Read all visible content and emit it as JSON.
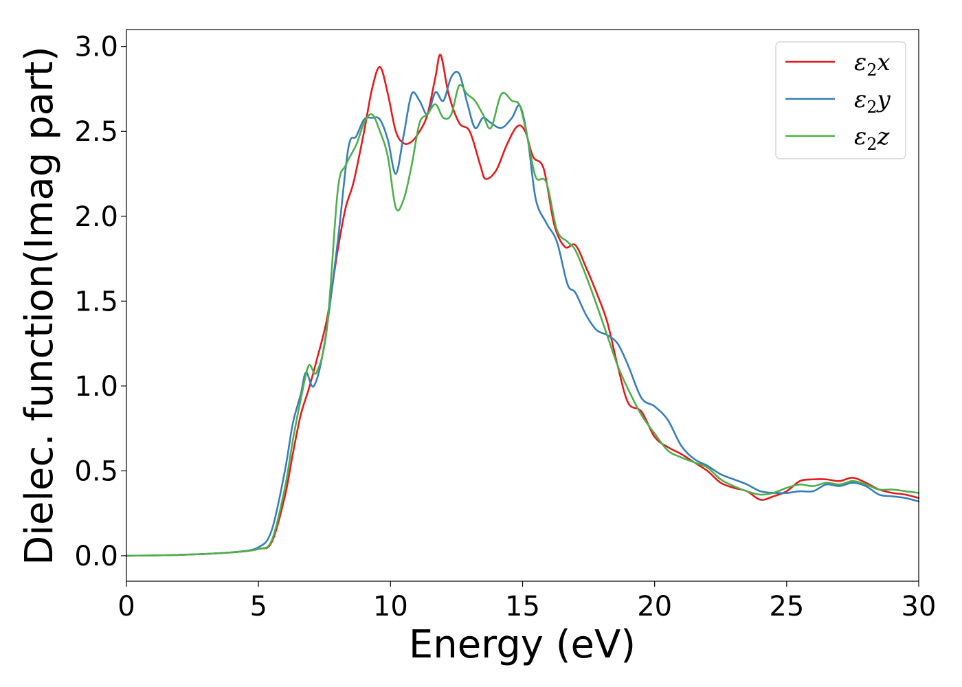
{
  "chart_data": {
    "type": "line",
    "xlabel": "Energy (eV)",
    "ylabel": "Dielec. function(Imag part)",
    "xlim": [
      0,
      30
    ],
    "ylim": [
      -0.15,
      3.1
    ],
    "xticks": [
      0,
      5,
      10,
      15,
      20,
      25,
      30
    ],
    "yticks": [
      0.0,
      0.5,
      1.0,
      1.5,
      2.0,
      2.5,
      3.0
    ],
    "xtick_labels": [
      "0",
      "5",
      "10",
      "15",
      "20",
      "25",
      "30"
    ],
    "ytick_labels": [
      "0.0",
      "0.5",
      "1.0",
      "1.5",
      "2.0",
      "2.5",
      "3.0"
    ],
    "grid": false,
    "legend_position": "top-right",
    "series": [
      {
        "name_main": "ε",
        "name_sub": "2",
        "name_tail": "x",
        "color": "#e41a1c",
        "points": [
          [
            0,
            0.0
          ],
          [
            2,
            0.005
          ],
          [
            4,
            0.02
          ],
          [
            5,
            0.04
          ],
          [
            5.5,
            0.08
          ],
          [
            6,
            0.35
          ],
          [
            6.3,
            0.6
          ],
          [
            6.6,
            0.83
          ],
          [
            6.9,
            0.98
          ],
          [
            7.2,
            1.15
          ],
          [
            7.6,
            1.4
          ],
          [
            8,
            1.8
          ],
          [
            8.3,
            2.05
          ],
          [
            8.6,
            2.2
          ],
          [
            9,
            2.5
          ],
          [
            9.3,
            2.75
          ],
          [
            9.6,
            2.88
          ],
          [
            9.9,
            2.72
          ],
          [
            10.2,
            2.5
          ],
          [
            10.5,
            2.43
          ],
          [
            10.8,
            2.44
          ],
          [
            11.1,
            2.5
          ],
          [
            11.4,
            2.6
          ],
          [
            11.7,
            2.82
          ],
          [
            11.9,
            2.95
          ],
          [
            12.2,
            2.72
          ],
          [
            12.6,
            2.55
          ],
          [
            13,
            2.5
          ],
          [
            13.4,
            2.3
          ],
          [
            13.6,
            2.22
          ],
          [
            14,
            2.27
          ],
          [
            14.4,
            2.42
          ],
          [
            14.8,
            2.53
          ],
          [
            15.1,
            2.5
          ],
          [
            15.4,
            2.35
          ],
          [
            15.8,
            2.28
          ],
          [
            16.2,
            1.95
          ],
          [
            16.6,
            1.82
          ],
          [
            17,
            1.83
          ],
          [
            17.4,
            1.7
          ],
          [
            17.8,
            1.55
          ],
          [
            18.2,
            1.38
          ],
          [
            18.6,
            1.12
          ],
          [
            19,
            0.9
          ],
          [
            19.5,
            0.85
          ],
          [
            20,
            0.7
          ],
          [
            20.5,
            0.64
          ],
          [
            21,
            0.6
          ],
          [
            21.5,
            0.55
          ],
          [
            22,
            0.5
          ],
          [
            22.5,
            0.43
          ],
          [
            23,
            0.4
          ],
          [
            23.5,
            0.38
          ],
          [
            24,
            0.33
          ],
          [
            24.5,
            0.35
          ],
          [
            25,
            0.38
          ],
          [
            25.5,
            0.44
          ],
          [
            26,
            0.45
          ],
          [
            26.5,
            0.45
          ],
          [
            27,
            0.44
          ],
          [
            27.5,
            0.46
          ],
          [
            28,
            0.43
          ],
          [
            28.5,
            0.39
          ],
          [
            29,
            0.37
          ],
          [
            29.5,
            0.36
          ],
          [
            30,
            0.34
          ]
        ]
      },
      {
        "name_main": "ε",
        "name_sub": "2",
        "name_tail": "y",
        "color": "#377eb8",
        "points": [
          [
            0,
            0.0
          ],
          [
            2,
            0.005
          ],
          [
            4,
            0.02
          ],
          [
            5,
            0.05
          ],
          [
            5.5,
            0.15
          ],
          [
            6,
            0.5
          ],
          [
            6.3,
            0.78
          ],
          [
            6.6,
            0.95
          ],
          [
            6.8,
            1.08
          ],
          [
            7.1,
            1.0
          ],
          [
            7.5,
            1.25
          ],
          [
            8,
            1.85
          ],
          [
            8.4,
            2.4
          ],
          [
            8.7,
            2.47
          ],
          [
            9,
            2.57
          ],
          [
            9.3,
            2.58
          ],
          [
            9.6,
            2.57
          ],
          [
            9.9,
            2.45
          ],
          [
            10.2,
            2.25
          ],
          [
            10.5,
            2.48
          ],
          [
            10.8,
            2.72
          ],
          [
            11.1,
            2.68
          ],
          [
            11.4,
            2.6
          ],
          [
            11.7,
            2.73
          ],
          [
            12,
            2.68
          ],
          [
            12.3,
            2.82
          ],
          [
            12.6,
            2.84
          ],
          [
            12.9,
            2.67
          ],
          [
            13.2,
            2.52
          ],
          [
            13.5,
            2.58
          ],
          [
            13.8,
            2.55
          ],
          [
            14.2,
            2.52
          ],
          [
            14.6,
            2.58
          ],
          [
            14.9,
            2.65
          ],
          [
            15.2,
            2.45
          ],
          [
            15.5,
            2.1
          ],
          [
            15.9,
            1.96
          ],
          [
            16.3,
            1.85
          ],
          [
            16.7,
            1.6
          ],
          [
            17,
            1.55
          ],
          [
            17.4,
            1.42
          ],
          [
            17.8,
            1.33
          ],
          [
            18.2,
            1.3
          ],
          [
            18.6,
            1.25
          ],
          [
            19,
            1.12
          ],
          [
            19.5,
            0.93
          ],
          [
            20,
            0.88
          ],
          [
            20.5,
            0.8
          ],
          [
            21,
            0.65
          ],
          [
            21.5,
            0.57
          ],
          [
            22,
            0.53
          ],
          [
            22.5,
            0.48
          ],
          [
            23,
            0.45
          ],
          [
            23.5,
            0.42
          ],
          [
            24,
            0.38
          ],
          [
            24.5,
            0.37
          ],
          [
            25,
            0.37
          ],
          [
            25.5,
            0.38
          ],
          [
            26,
            0.38
          ],
          [
            26.5,
            0.42
          ],
          [
            27,
            0.41
          ],
          [
            27.5,
            0.43
          ],
          [
            28,
            0.41
          ],
          [
            28.5,
            0.36
          ],
          [
            29,
            0.35
          ],
          [
            29.5,
            0.34
          ],
          [
            30,
            0.32
          ]
        ]
      },
      {
        "name_main": "ε",
        "name_sub": "2",
        "name_tail": "z",
        "color": "#4daf4a",
        "points": [
          [
            0,
            0.0
          ],
          [
            2,
            0.005
          ],
          [
            4,
            0.02
          ],
          [
            5,
            0.04
          ],
          [
            5.5,
            0.09
          ],
          [
            6,
            0.4
          ],
          [
            6.3,
            0.68
          ],
          [
            6.6,
            0.92
          ],
          [
            6.9,
            1.12
          ],
          [
            7.2,
            1.08
          ],
          [
            7.6,
            1.35
          ],
          [
            8,
            2.15
          ],
          [
            8.3,
            2.3
          ],
          [
            8.7,
            2.42
          ],
          [
            9,
            2.55
          ],
          [
            9.3,
            2.6
          ],
          [
            9.6,
            2.5
          ],
          [
            9.9,
            2.35
          ],
          [
            10.2,
            2.05
          ],
          [
            10.5,
            2.1
          ],
          [
            10.8,
            2.3
          ],
          [
            11.1,
            2.55
          ],
          [
            11.4,
            2.6
          ],
          [
            11.7,
            2.66
          ],
          [
            12,
            2.58
          ],
          [
            12.3,
            2.6
          ],
          [
            12.6,
            2.77
          ],
          [
            12.9,
            2.72
          ],
          [
            13.2,
            2.68
          ],
          [
            13.5,
            2.6
          ],
          [
            13.8,
            2.52
          ],
          [
            14.2,
            2.72
          ],
          [
            14.6,
            2.68
          ],
          [
            14.9,
            2.65
          ],
          [
            15.2,
            2.45
          ],
          [
            15.5,
            2.23
          ],
          [
            15.9,
            2.2
          ],
          [
            16.3,
            1.92
          ],
          [
            16.7,
            1.85
          ],
          [
            17,
            1.8
          ],
          [
            17.4,
            1.65
          ],
          [
            17.8,
            1.48
          ],
          [
            18.2,
            1.3
          ],
          [
            18.6,
            1.12
          ],
          [
            19,
            0.98
          ],
          [
            19.5,
            0.83
          ],
          [
            20,
            0.72
          ],
          [
            20.5,
            0.62
          ],
          [
            21,
            0.58
          ],
          [
            21.5,
            0.55
          ],
          [
            22,
            0.52
          ],
          [
            22.5,
            0.45
          ],
          [
            23,
            0.41
          ],
          [
            23.5,
            0.38
          ],
          [
            24,
            0.36
          ],
          [
            24.5,
            0.37
          ],
          [
            25,
            0.4
          ],
          [
            25.5,
            0.42
          ],
          [
            26,
            0.41
          ],
          [
            26.5,
            0.43
          ],
          [
            27,
            0.42
          ],
          [
            27.5,
            0.44
          ],
          [
            28,
            0.42
          ],
          [
            28.5,
            0.39
          ],
          [
            29,
            0.39
          ],
          [
            29.5,
            0.38
          ],
          [
            30,
            0.37
          ]
        ]
      }
    ]
  }
}
